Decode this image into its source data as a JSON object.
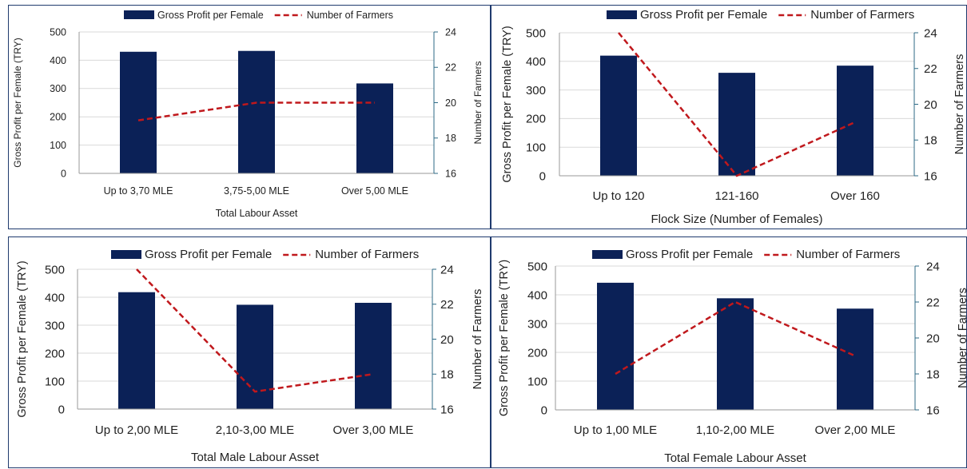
{
  "colors": {
    "bar": "#0b2157",
    "line": "#c0181c",
    "frame": "#1f3a6e",
    "secondary_axis": "#2c6a86"
  },
  "chart_data": [
    {
      "type": "bar+line",
      "legend": {
        "bar": "Gross Profit per Female",
        "line": "Number of Farmers",
        "position": "top"
      },
      "categories": [
        "Up to 3,70 MLE",
        "3,75-5,00 MLE",
        "Over 5,00 MLE"
      ],
      "series": [
        {
          "name": "Gross Profit per Female",
          "type": "bar",
          "axis": "left",
          "values": [
            430,
            433,
            318
          ]
        },
        {
          "name": "Number of Farmers",
          "type": "line",
          "style": "dashed",
          "axis": "right",
          "values": [
            19,
            20,
            20
          ]
        }
      ],
      "xlabel": "Total Labour Asset",
      "ylabel": "Gross Profit per Female (TRY)",
      "y2label": "Number of Farmers",
      "ylim": [
        0,
        500
      ],
      "yticks": [
        "0",
        "100",
        "200",
        "300",
        "400",
        "500"
      ],
      "y2lim": [
        16,
        24
      ],
      "y2ticks": [
        "16",
        "18",
        "20",
        "22",
        "24"
      ],
      "grid": true
    },
    {
      "type": "bar+line",
      "legend": {
        "bar": "Gross Profit per Female",
        "line": "Number of Farmers",
        "position": "top"
      },
      "categories": [
        "Up to 120",
        "121-160",
        "Over 160"
      ],
      "series": [
        {
          "name": "Gross Profit per Female",
          "type": "bar",
          "axis": "left",
          "values": [
            420,
            360,
            385
          ]
        },
        {
          "name": "Number of Farmers",
          "type": "line",
          "style": "dashed",
          "axis": "right",
          "values": [
            24,
            16,
            19
          ]
        }
      ],
      "xlabel": "Flock Size (Number of Females)",
      "ylabel": "Gross Profit per Female (TRY)",
      "y2label": "Number of Farmers",
      "ylim": [
        0,
        500
      ],
      "yticks": [
        "0",
        "100",
        "200",
        "300",
        "400",
        "500"
      ],
      "y2lim": [
        16,
        24
      ],
      "y2ticks": [
        "16",
        "18",
        "20",
        "22",
        "24"
      ],
      "grid": true
    },
    {
      "type": "bar+line",
      "legend": {
        "bar": "Gross Profit per Female",
        "line": "Number of Farmers",
        "position": "top"
      },
      "categories": [
        "Up to 2,00 MLE",
        "2,10-3,00 MLE",
        "Over 3,00 MLE"
      ],
      "series": [
        {
          "name": "Gross Profit per Female",
          "type": "bar",
          "axis": "left",
          "values": [
            418,
            373,
            380
          ]
        },
        {
          "name": "Number of Farmers",
          "type": "line",
          "style": "dashed",
          "axis": "right",
          "values": [
            24,
            17,
            18
          ]
        }
      ],
      "xlabel": "Total Male Labour Asset",
      "ylabel": "Gross Profit per Female (TRY)",
      "y2label": "Number of Farmers",
      "ylim": [
        0,
        500
      ],
      "yticks": [
        "0",
        "100",
        "200",
        "300",
        "400",
        "500"
      ],
      "y2lim": [
        16,
        24
      ],
      "y2ticks": [
        "16",
        "18",
        "20",
        "22",
        "24"
      ],
      "grid": true
    },
    {
      "type": "bar+line",
      "legend": {
        "bar": "Gross Profit per Female",
        "line": "Number of Farmers",
        "position": "top"
      },
      "categories": [
        "Up to 1,00 MLE",
        "1,10-2,00 MLE",
        "Over 2,00 MLE"
      ],
      "series": [
        {
          "name": "Gross Profit per Female",
          "type": "bar",
          "axis": "left",
          "values": [
            442,
            388,
            352
          ]
        },
        {
          "name": "Number of Farmers",
          "type": "line",
          "style": "dashed",
          "axis": "right",
          "values": [
            18,
            22,
            19
          ]
        }
      ],
      "xlabel": "Total Female Labour Asset",
      "ylabel": "Gross Profit per Female (TRY)",
      "y2label": "Number of Farmers",
      "ylim": [
        0,
        500
      ],
      "yticks": [
        "0",
        "100",
        "200",
        "300",
        "400",
        "500"
      ],
      "y2lim": [
        16,
        24
      ],
      "y2ticks": [
        "16",
        "18",
        "20",
        "22",
        "24"
      ],
      "grid": true
    }
  ]
}
